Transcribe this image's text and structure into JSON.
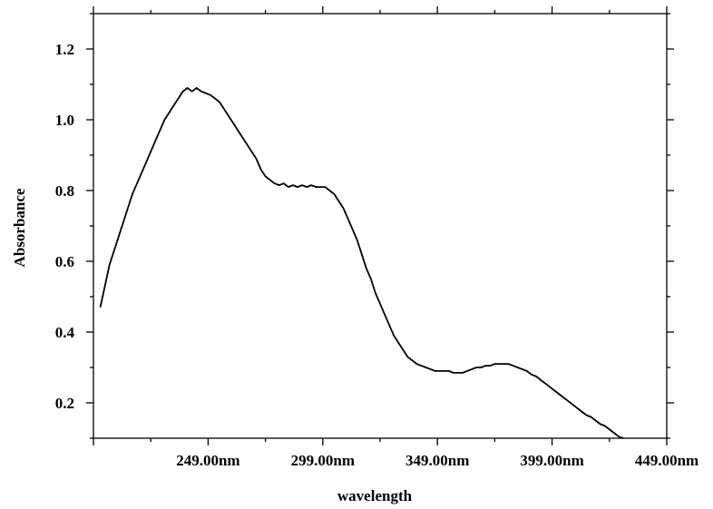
{
  "chart_data": {
    "type": "line",
    "title": "",
    "xlabel": "wavelength",
    "ylabel": "Absorbance",
    "xlim": [
      199,
      449
    ],
    "ylim": [
      0.1,
      1.3
    ],
    "x_ticks": [
      249,
      299,
      349,
      399,
      449
    ],
    "x_tick_labels": [
      "249.00nm",
      "299.00nm",
      "349.00nm",
      "399.00nm",
      "449.00nm"
    ],
    "y_ticks": [
      0.2,
      0.4,
      0.6,
      0.8,
      1.0,
      1.2
    ],
    "y_tick_labels": [
      "0.2",
      "0.4",
      "0.6",
      "0.8",
      "1.0",
      "1.2"
    ],
    "grid": false,
    "legend": "none",
    "line_color": "#000000",
    "series": [
      {
        "x": [
          202,
          204,
          206,
          208,
          210,
          212,
          214,
          216,
          218,
          220,
          222,
          224,
          226,
          228,
          230,
          232,
          234,
          236,
          238,
          240,
          242,
          244,
          246,
          248,
          250,
          252,
          254,
          256,
          258,
          260,
          262,
          264,
          266,
          268,
          270,
          272,
          274,
          276,
          278,
          280,
          282,
          284,
          286,
          288,
          290,
          292,
          294,
          296,
          298,
          300,
          302,
          304,
          306,
          308,
          310,
          312,
          314,
          316,
          318,
          320,
          322,
          324,
          326,
          328,
          330,
          332,
          334,
          336,
          338,
          340,
          342,
          344,
          346,
          348,
          350,
          352,
          354,
          356,
          358,
          360,
          362,
          364,
          366,
          368,
          370,
          372,
          374,
          376,
          378,
          380,
          382,
          384,
          386,
          388,
          390,
          392,
          394,
          396,
          398,
          400,
          402,
          404,
          406,
          408,
          410,
          412,
          414,
          416,
          418,
          420,
          422,
          424,
          426,
          428,
          430,
          432,
          434,
          436,
          438,
          440,
          442,
          444,
          446
        ],
        "y": [
          0.47,
          0.53,
          0.59,
          0.63,
          0.67,
          0.71,
          0.75,
          0.79,
          0.82,
          0.85,
          0.88,
          0.91,
          0.94,
          0.97,
          1.0,
          1.02,
          1.04,
          1.06,
          1.08,
          1.09,
          1.08,
          1.09,
          1.08,
          1.075,
          1.07,
          1.06,
          1.05,
          1.03,
          1.01,
          0.99,
          0.97,
          0.95,
          0.93,
          0.91,
          0.89,
          0.86,
          0.84,
          0.83,
          0.82,
          0.815,
          0.82,
          0.81,
          0.815,
          0.81,
          0.815,
          0.81,
          0.815,
          0.81,
          0.81,
          0.81,
          0.8,
          0.79,
          0.77,
          0.75,
          0.72,
          0.69,
          0.66,
          0.62,
          0.58,
          0.55,
          0.51,
          0.48,
          0.45,
          0.42,
          0.39,
          0.37,
          0.35,
          0.33,
          0.32,
          0.31,
          0.305,
          0.3,
          0.295,
          0.29,
          0.29,
          0.29,
          0.29,
          0.285,
          0.285,
          0.285,
          0.29,
          0.295,
          0.3,
          0.3,
          0.305,
          0.305,
          0.31,
          0.31,
          0.31,
          0.31,
          0.305,
          0.3,
          0.295,
          0.29,
          0.28,
          0.275,
          0.265,
          0.255,
          0.245,
          0.235,
          0.225,
          0.215,
          0.205,
          0.195,
          0.185,
          0.175,
          0.165,
          0.16,
          0.15,
          0.14,
          0.135,
          0.125,
          0.115,
          0.105,
          0.1,
          0.095,
          0.09,
          0.085,
          0.08,
          0.075,
          0.07,
          0.065,
          0.06
        ]
      }
    ]
  }
}
